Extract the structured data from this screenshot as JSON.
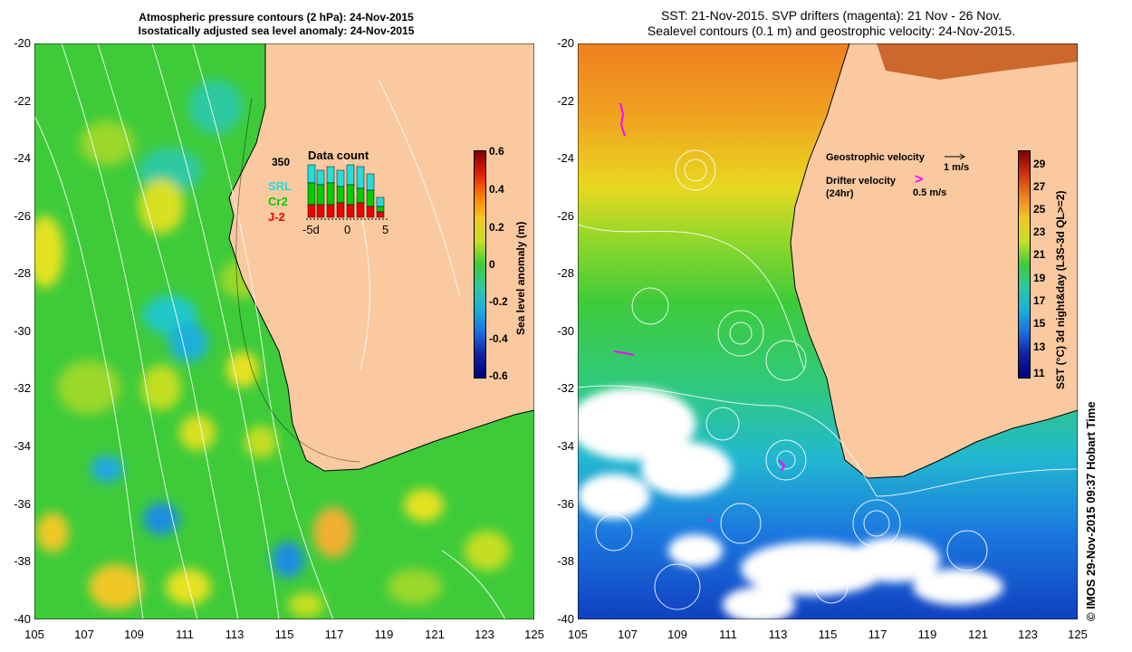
{
  "left_panel": {
    "title_line1": "Atmospheric pressure contours (2 hPa): 24-Nov-2015",
    "title_line2": "Isostatically adjusted sea level anomaly: 24-Nov-2015",
    "y_ticks": [
      "-20",
      "-22",
      "-24",
      "-26",
      "-28",
      "-30",
      "-32",
      "-34",
      "-36",
      "-38",
      "-40"
    ],
    "x_ticks": [
      "105",
      "107",
      "109",
      "111",
      "113",
      "115",
      "117",
      "119",
      "121",
      "123",
      "125"
    ],
    "data_count": {
      "title": "Data count",
      "max_label": "350",
      "legend": [
        "SRL",
        "Cr2",
        "J-2"
      ],
      "legend_colors": [
        "#22dddd",
        "#00cc00",
        "#ee0000"
      ],
      "x_ticks": [
        "-5d",
        "0",
        "5"
      ]
    },
    "colorbar": {
      "label": "Sea level anomaly (m)",
      "ticks": [
        "0.6",
        "0.4",
        "0.2",
        "0",
        "-0.2",
        "-0.4",
        "-0.6"
      ]
    }
  },
  "right_panel": {
    "title_line1": "SST: 21-Nov-2015. SVP drifters (magenta): 21 Nov - 26 Nov.",
    "title_line2": "Sealevel contours (0.1 m) and geostrophic velocity: 24-Nov-2015.",
    "y_ticks": [
      "-20",
      "-22",
      "-24",
      "-26",
      "-28",
      "-30",
      "-32",
      "-34",
      "-36",
      "-38",
      "-40"
    ],
    "x_ticks": [
      "105",
      "107",
      "109",
      "111",
      "113",
      "115",
      "117",
      "119",
      "121",
      "123",
      "125"
    ],
    "legend": {
      "geo_label": "Geostrophic velocity",
      "geo_scale": "1 m/s",
      "drifter_label": "Drifter velocity",
      "drifter_sub": "(24hr)",
      "drifter_scale": "0.5 m/s"
    },
    "colorbar": {
      "label": "SST (°C) 3d night&day (L3S-3d QL>=2)",
      "ticks": [
        "29",
        "27",
        "25",
        "23",
        "21",
        "19",
        "17",
        "15",
        "13",
        "11"
      ]
    }
  },
  "credit": "© IMOS 29-Nov-2015 09:37 Hobart Time",
  "colors": {
    "land": "#fac9a0",
    "drifter": "#ff00ff"
  }
}
